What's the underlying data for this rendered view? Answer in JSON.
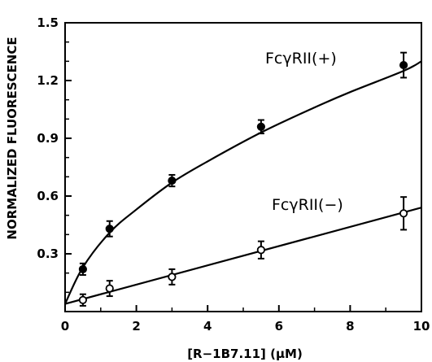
{
  "chart_data": {
    "type": "scatter",
    "title": "",
    "xlabel": "[R−1B7.11] (μM)",
    "ylabel": "NORMALIZED FLUORESCENCE",
    "xlim": [
      0,
      10
    ],
    "ylim": [
      0,
      1.5
    ],
    "xticks": [
      0,
      2,
      4,
      6,
      8,
      10
    ],
    "yticks": [
      0.3,
      0.6,
      0.9,
      1.2,
      1.5
    ],
    "xtick_labels": [
      "0",
      "2",
      "4",
      "6",
      "8",
      "10"
    ],
    "ytick_labels": [
      "0.3",
      "0.6",
      "0.9",
      "1.2",
      "1.5"
    ],
    "grid": false,
    "series": [
      {
        "name": "FcγRII(+)",
        "marker": "filled-circle",
        "x": [
          0.5,
          1.25,
          3.0,
          5.5,
          9.5
        ],
        "y": [
          0.22,
          0.43,
          0.68,
          0.96,
          1.28
        ],
        "error": [
          0.03,
          0.04,
          0.03,
          0.035,
          0.065
        ],
        "fit": "saturating curve"
      },
      {
        "name": "FcγRII(−)",
        "marker": "open-circle",
        "x": [
          0.5,
          1.25,
          3.0,
          5.5,
          9.5
        ],
        "y": [
          0.06,
          0.12,
          0.18,
          0.32,
          0.51
        ],
        "error": [
          0.03,
          0.04,
          0.04,
          0.045,
          0.085
        ],
        "fit": "linear"
      }
    ],
    "fits": {
      "plus_curve": {
        "x": [
          0,
          0.5,
          1.25,
          2,
          3,
          4,
          5.5,
          7,
          8,
          9.5,
          10
        ],
        "y": [
          0.04,
          0.23,
          0.41,
          0.53,
          0.67,
          0.78,
          0.93,
          1.06,
          1.14,
          1.25,
          1.3
        ]
      },
      "minus_line": {
        "x": [
          0,
          10
        ],
        "y": [
          0.04,
          0.54
        ]
      }
    }
  }
}
